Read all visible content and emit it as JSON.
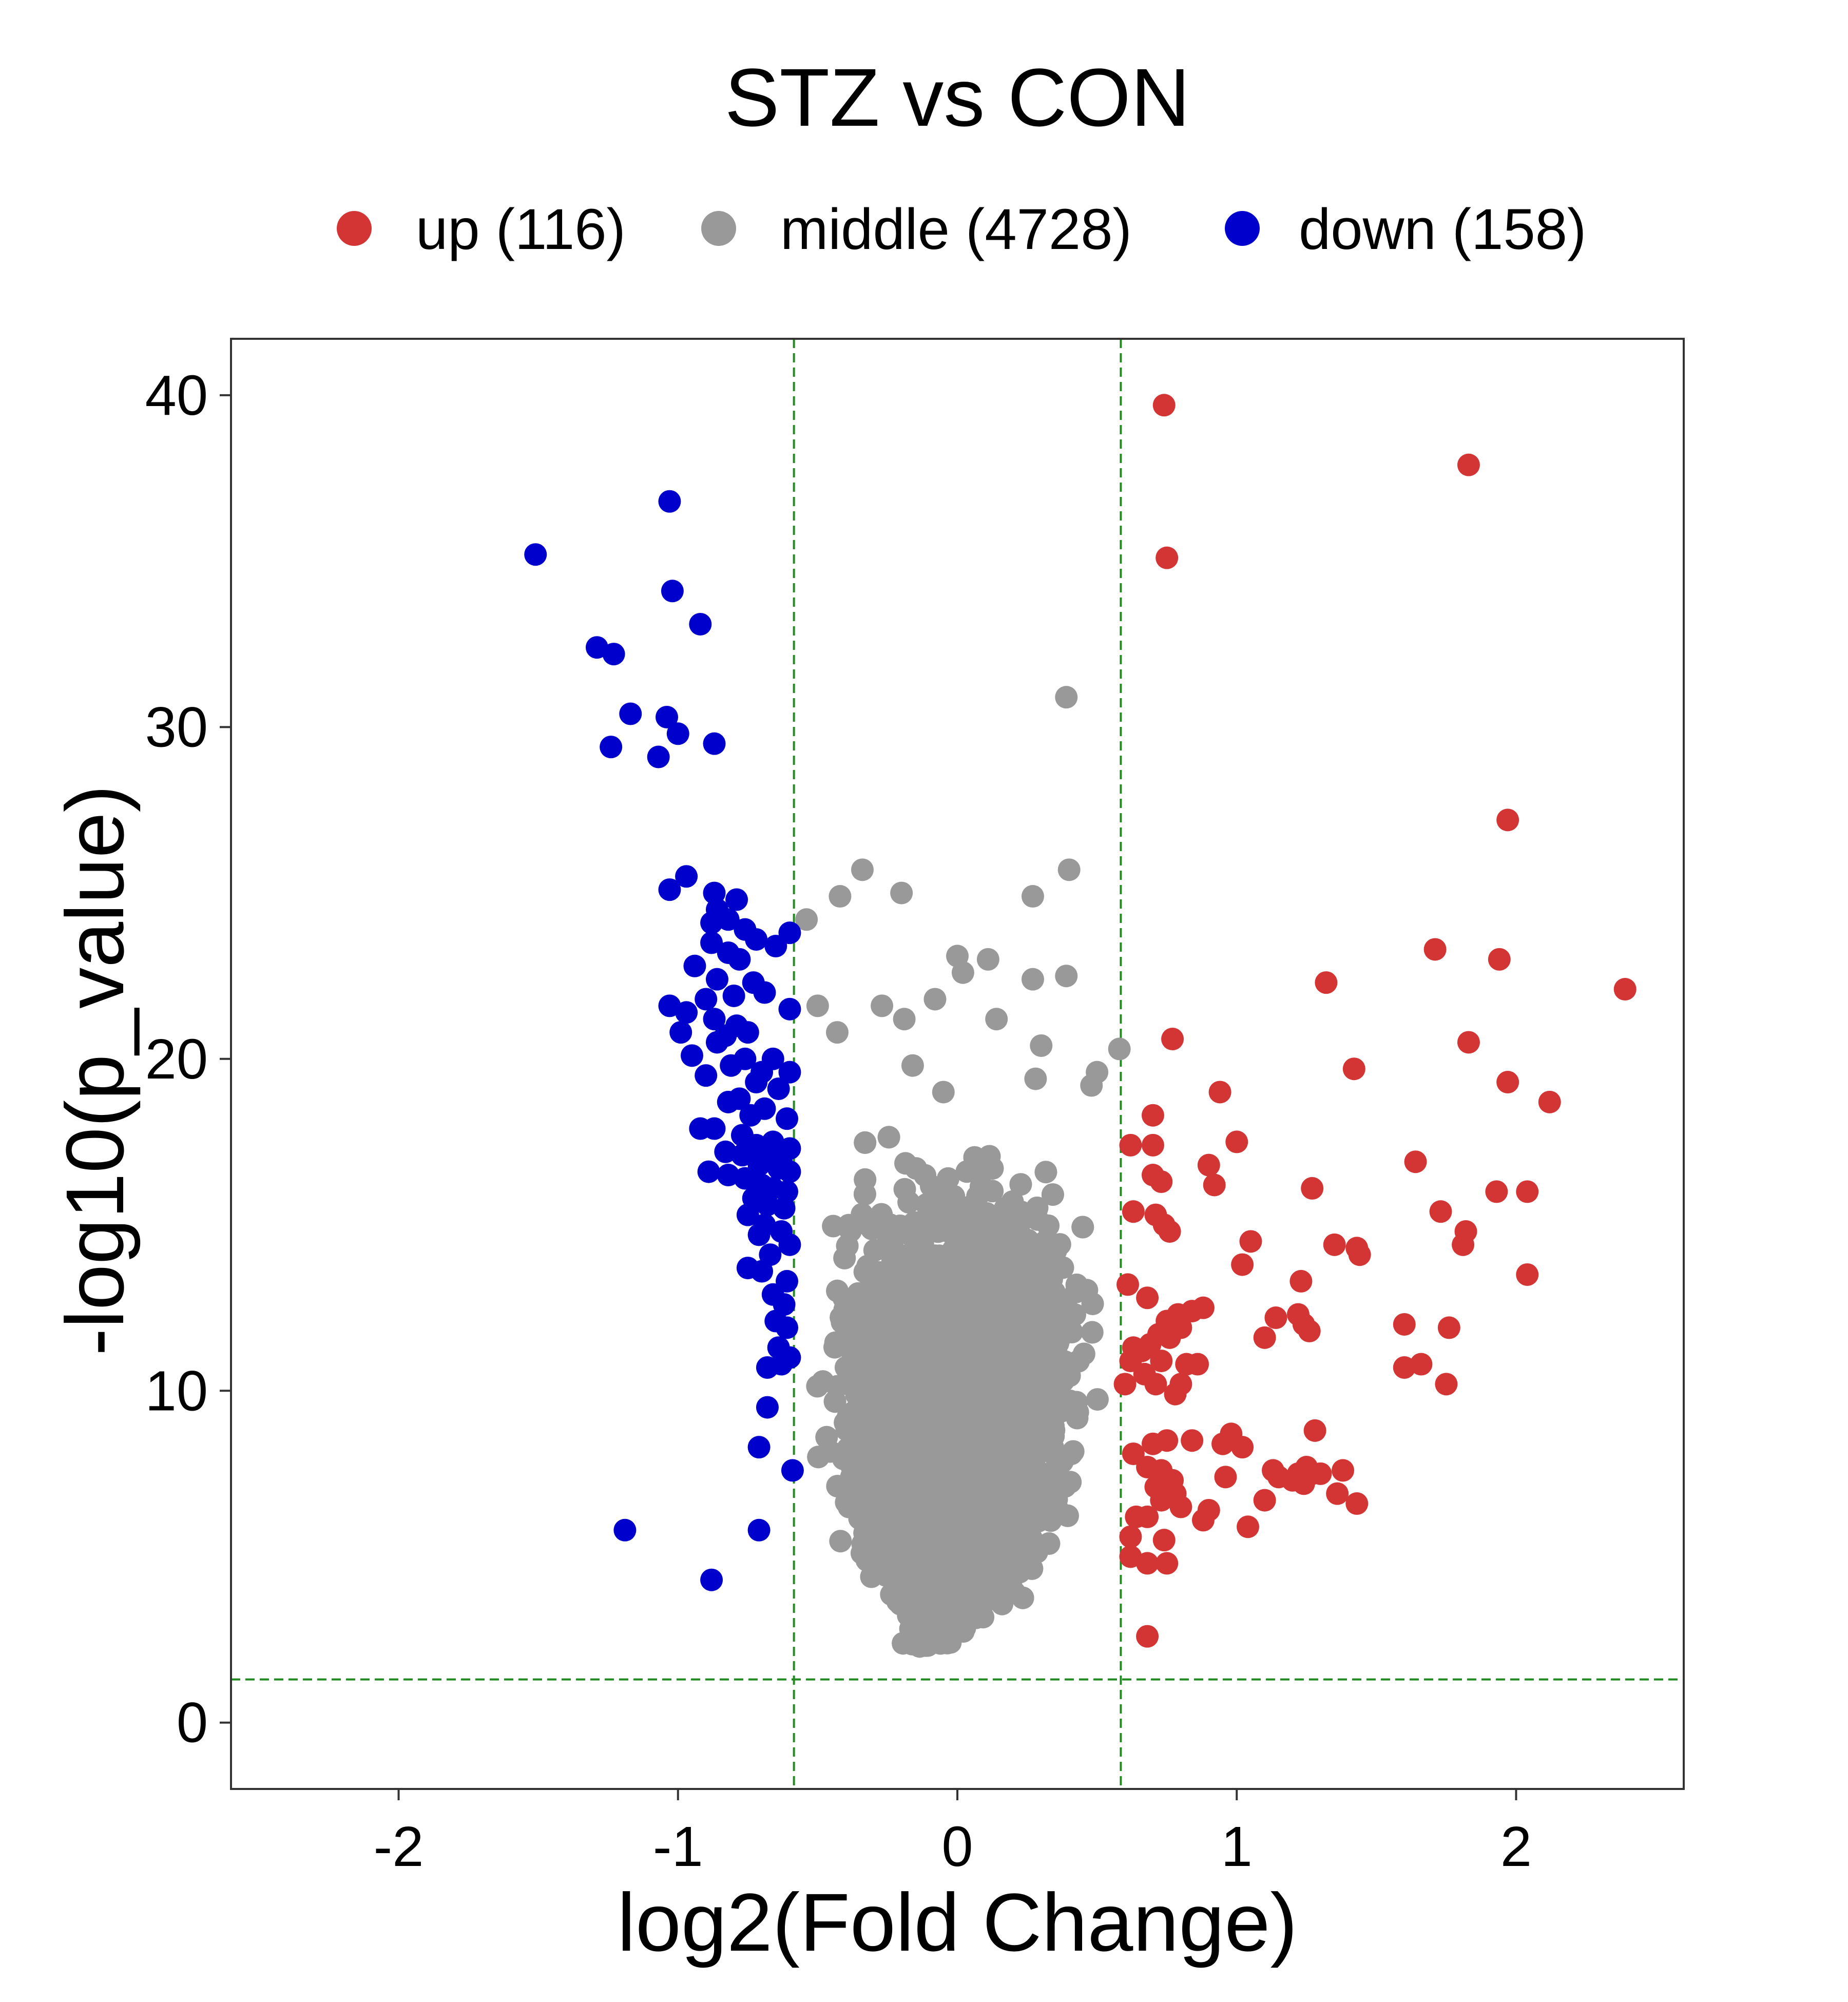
{
  "chart_data": {
    "type": "scatter",
    "title": "STZ vs CON",
    "xlabel": "log2(Fold Change)",
    "ylabel": "-log10(p_value)",
    "xlim": [
      -2.6,
      2.6
    ],
    "ylim": [
      -2,
      41.7
    ],
    "xticks": [
      -2,
      -1,
      0,
      1,
      2
    ],
    "yticks": [
      0,
      10,
      20,
      30,
      40
    ],
    "grid": false,
    "legend_position": "top",
    "thresholds": {
      "x": [
        -0.585,
        0.585
      ],
      "y": 1.301,
      "color": "#228B22"
    },
    "series": [
      {
        "name": "up (116)",
        "color": "#D33434",
        "points": [
          [
            0.74,
            39.7
          ],
          [
            1.83,
            37.9
          ],
          [
            0.75,
            35.1
          ],
          [
            1.97,
            27.2
          ],
          [
            1.71,
            23.3
          ],
          [
            1.94,
            23.0
          ],
          [
            2.39,
            22.1
          ],
          [
            1.32,
            22.3
          ],
          [
            0.77,
            20.6
          ],
          [
            1.83,
            20.5
          ],
          [
            1.42,
            19.7
          ],
          [
            1.97,
            19.3
          ],
          [
            2.12,
            18.7
          ],
          [
            0.94,
            19.0
          ],
          [
            0.7,
            18.3
          ],
          [
            1.0,
            17.5
          ],
          [
            0.62,
            17.4
          ],
          [
            0.7,
            17.4
          ],
          [
            0.9,
            16.8
          ],
          [
            1.64,
            16.9
          ],
          [
            0.7,
            16.5
          ],
          [
            0.73,
            16.3
          ],
          [
            0.92,
            16.2
          ],
          [
            1.27,
            16.1
          ],
          [
            1.93,
            16.0
          ],
          [
            2.04,
            16.0
          ],
          [
            0.63,
            15.4
          ],
          [
            0.71,
            15.3
          ],
          [
            0.74,
            15.0
          ],
          [
            0.76,
            14.8
          ],
          [
            1.73,
            15.4
          ],
          [
            1.82,
            14.8
          ],
          [
            1.05,
            14.5
          ],
          [
            1.35,
            14.4
          ],
          [
            1.43,
            14.3
          ],
          [
            1.44,
            14.1
          ],
          [
            1.81,
            14.4
          ],
          [
            1.02,
            13.8
          ],
          [
            2.04,
            13.5
          ],
          [
            0.61,
            13.2
          ],
          [
            1.23,
            13.3
          ],
          [
            0.68,
            12.8
          ],
          [
            0.84,
            12.4
          ],
          [
            0.88,
            12.5
          ],
          [
            0.79,
            12.3
          ],
          [
            0.75,
            12.1
          ],
          [
            0.8,
            11.9
          ],
          [
            0.72,
            11.7
          ],
          [
            0.69,
            11.4
          ],
          [
            0.76,
            11.6
          ],
          [
            0.66,
            11.2
          ],
          [
            0.63,
            11.3
          ],
          [
            0.62,
            10.9
          ],
          [
            0.73,
            10.9
          ],
          [
            0.82,
            10.8
          ],
          [
            0.86,
            10.8
          ],
          [
            0.67,
            10.5
          ],
          [
            0.6,
            10.2
          ],
          [
            0.71,
            10.2
          ],
          [
            0.8,
            10.2
          ],
          [
            0.78,
            9.9
          ],
          [
            1.14,
            12.2
          ],
          [
            1.22,
            12.3
          ],
          [
            1.24,
            12.0
          ],
          [
            1.26,
            11.8
          ],
          [
            1.1,
            11.6
          ],
          [
            1.6,
            12.0
          ],
          [
            1.76,
            11.9
          ],
          [
            1.6,
            10.7
          ],
          [
            1.66,
            10.8
          ],
          [
            1.75,
            10.2
          ],
          [
            0.63,
            8.1
          ],
          [
            0.7,
            8.4
          ],
          [
            0.75,
            8.5
          ],
          [
            0.84,
            8.5
          ],
          [
            0.98,
            8.7
          ],
          [
            1.28,
            8.8
          ],
          [
            0.95,
            8.4
          ],
          [
            1.02,
            8.3
          ],
          [
            1.13,
            7.6
          ],
          [
            0.68,
            7.7
          ],
          [
            0.73,
            7.6
          ],
          [
            0.77,
            7.3
          ],
          [
            0.71,
            7.1
          ],
          [
            0.78,
            6.9
          ],
          [
            0.96,
            7.4
          ],
          [
            1.15,
            7.4
          ],
          [
            1.22,
            7.5
          ],
          [
            1.25,
            7.7
          ],
          [
            1.27,
            7.5
          ],
          [
            1.2,
            7.3
          ],
          [
            1.24,
            7.2
          ],
          [
            1.3,
            7.5
          ],
          [
            1.38,
            7.6
          ],
          [
            1.36,
            6.9
          ],
          [
            1.1,
            6.7
          ],
          [
            1.43,
            6.6
          ],
          [
            0.73,
            6.7
          ],
          [
            0.8,
            6.5
          ],
          [
            0.88,
            6.1
          ],
          [
            0.9,
            6.4
          ],
          [
            0.64,
            6.2
          ],
          [
            0.68,
            6.2
          ],
          [
            0.62,
            5.6
          ],
          [
            0.74,
            5.5
          ],
          [
            0.62,
            5.0
          ],
          [
            0.68,
            4.8
          ],
          [
            0.75,
            4.8
          ],
          [
            1.04,
            5.9
          ],
          [
            0.68,
            2.6
          ]
        ]
      },
      {
        "name": "middle (4728)",
        "color": "#999999",
        "points": [
          [
            0.39,
            30.9
          ],
          [
            -0.34,
            25.7
          ],
          [
            0.4,
            25.7
          ],
          [
            -0.42,
            24.9
          ],
          [
            -0.2,
            25.0
          ],
          [
            0.27,
            24.9
          ],
          [
            -0.54,
            24.2
          ],
          [
            0.0,
            23.1
          ],
          [
            0.11,
            23.0
          ],
          [
            0.02,
            22.6
          ],
          [
            0.27,
            22.4
          ],
          [
            0.39,
            22.5
          ],
          [
            -0.08,
            21.8
          ],
          [
            -0.27,
            21.6
          ],
          [
            -0.5,
            21.6
          ],
          [
            0.14,
            21.2
          ],
          [
            -0.19,
            21.2
          ],
          [
            -0.43,
            20.8
          ],
          [
            0.3,
            20.4
          ],
          [
            0.58,
            20.3
          ],
          [
            -0.16,
            19.8
          ],
          [
            0.5,
            19.6
          ],
          [
            0.28,
            19.4
          ],
          [
            -0.05,
            19.0
          ],
          [
            0.48,
            19.2
          ]
        ],
        "cloud": {
          "count": 4700,
          "rows": [
            [
              2.5,
              -0.25,
              0.05
            ],
            [
              3.5,
              -0.35,
              0.3
            ],
            [
              5,
              -0.45,
              0.4
            ],
            [
              7,
              -0.52,
              0.5
            ],
            [
              10,
              -0.56,
              0.55
            ],
            [
              13,
              -0.56,
              0.56
            ],
            [
              16,
              -0.55,
              0.55
            ],
            [
              18,
              -0.5,
              0.45
            ],
            [
              19.5,
              -0.35,
              0.3
            ]
          ]
        }
      },
      {
        "name": "down (158)",
        "color": "#0000CD",
        "points": [
          [
            -1.03,
            36.8
          ],
          [
            -1.51,
            35.2
          ],
          [
            -1.02,
            34.1
          ],
          [
            -0.92,
            33.1
          ],
          [
            -1.29,
            32.4
          ],
          [
            -1.23,
            32.2
          ],
          [
            -1.17,
            30.4
          ],
          [
            -1.04,
            30.3
          ],
          [
            -1.0,
            29.8
          ],
          [
            -1.24,
            29.4
          ],
          [
            -1.07,
            29.1
          ],
          [
            -0.87,
            29.5
          ],
          [
            -1.03,
            25.1
          ],
          [
            -0.97,
            25.5
          ],
          [
            -0.87,
            25.0
          ],
          [
            -0.79,
            24.8
          ],
          [
            -0.86,
            24.5
          ],
          [
            -0.82,
            24.2
          ],
          [
            -0.88,
            24.1
          ],
          [
            -0.76,
            23.9
          ],
          [
            -0.6,
            23.8
          ],
          [
            -0.72,
            23.6
          ],
          [
            -0.65,
            23.4
          ],
          [
            -0.88,
            23.5
          ],
          [
            -0.82,
            23.2
          ],
          [
            -0.78,
            23.0
          ],
          [
            -0.94,
            22.8
          ],
          [
            -0.86,
            22.4
          ],
          [
            -0.73,
            22.3
          ],
          [
            -0.69,
            22.0
          ],
          [
            -0.8,
            21.9
          ],
          [
            -0.9,
            21.8
          ],
          [
            -1.03,
            21.6
          ],
          [
            -0.97,
            21.4
          ],
          [
            -0.87,
            21.2
          ],
          [
            -0.79,
            21.0
          ],
          [
            -0.6,
            21.5
          ],
          [
            -0.75,
            20.8
          ],
          [
            -0.83,
            20.7
          ],
          [
            -0.99,
            20.8
          ],
          [
            -0.86,
            20.5
          ],
          [
            -0.95,
            20.1
          ],
          [
            -0.76,
            20.0
          ],
          [
            -0.66,
            20.0
          ],
          [
            -0.81,
            19.8
          ],
          [
            -0.7,
            19.6
          ],
          [
            -0.6,
            19.6
          ],
          [
            -0.9,
            19.5
          ],
          [
            -0.72,
            19.3
          ],
          [
            -0.64,
            19.1
          ],
          [
            -0.78,
            18.8
          ],
          [
            -0.82,
            18.7
          ],
          [
            -0.69,
            18.5
          ],
          [
            -0.74,
            18.3
          ],
          [
            -0.61,
            18.2
          ],
          [
            -0.92,
            17.9
          ],
          [
            -0.87,
            17.9
          ],
          [
            -0.77,
            17.7
          ],
          [
            -0.66,
            17.5
          ],
          [
            -0.72,
            17.4
          ],
          [
            -0.6,
            17.3
          ],
          [
            -0.83,
            17.2
          ],
          [
            -0.77,
            17.1
          ],
          [
            -0.69,
            17.0
          ],
          [
            -0.63,
            16.9
          ],
          [
            -0.71,
            16.8
          ],
          [
            -0.64,
            16.7
          ],
          [
            -0.6,
            16.6
          ],
          [
            -0.89,
            16.6
          ],
          [
            -0.82,
            16.5
          ],
          [
            -0.76,
            16.4
          ],
          [
            -0.7,
            16.2
          ],
          [
            -0.66,
            16.1
          ],
          [
            -0.61,
            16.0
          ],
          [
            -0.73,
            15.8
          ],
          [
            -0.68,
            15.6
          ],
          [
            -0.62,
            15.5
          ],
          [
            -0.75,
            15.3
          ],
          [
            -0.69,
            15.0
          ],
          [
            -0.71,
            14.7
          ],
          [
            -0.63,
            14.8
          ],
          [
            -0.6,
            14.4
          ],
          [
            -0.67,
            14.1
          ],
          [
            -0.75,
            13.7
          ],
          [
            -0.7,
            13.6
          ],
          [
            -0.61,
            13.3
          ],
          [
            -0.66,
            12.9
          ],
          [
            -0.62,
            12.6
          ],
          [
            -0.65,
            12.1
          ],
          [
            -0.61,
            11.9
          ],
          [
            -0.64,
            11.3
          ],
          [
            -0.6,
            11.0
          ],
          [
            -0.63,
            10.8
          ],
          [
            -0.68,
            10.7
          ],
          [
            -0.68,
            9.5
          ],
          [
            -0.71,
            8.3
          ],
          [
            -0.59,
            7.6
          ],
          [
            -1.19,
            5.8
          ],
          [
            -0.71,
            5.8
          ],
          [
            -0.88,
            4.3
          ]
        ]
      }
    ]
  }
}
